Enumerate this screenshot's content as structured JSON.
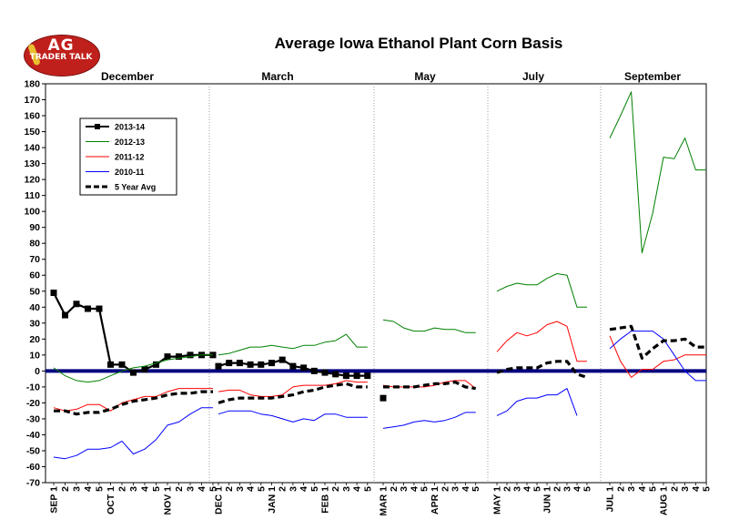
{
  "title": "Average Iowa Ethanol Plant Corn Basis",
  "logo": {
    "line1": "AG",
    "line2": "TRADER TALK"
  },
  "chart_data": {
    "type": "line",
    "title": "Average Iowa Ethanol Plant Corn Basis",
    "ylim": [
      -70,
      180
    ],
    "ytick_step": 10,
    "grid": false,
    "legend_position": "top-left",
    "zero_line_color": "#000080",
    "panels": [
      {
        "name": "December",
        "x_labels": [
          "SEP 1",
          "2",
          "3",
          "4",
          "5",
          "OCT 1",
          "2",
          "3",
          "4",
          "5",
          "NOV 1",
          "2",
          "3",
          "4",
          "5"
        ],
        "series": [
          {
            "name": "2013-14",
            "values": [
              49,
              35,
              42,
              39,
              39,
              4,
              4,
              -1,
              1,
              4,
              9,
              9,
              10,
              10,
              10
            ]
          },
          {
            "name": "2012-13",
            "values": [
              2,
              -3,
              -6,
              -7,
              -6,
              -3,
              0,
              2,
              3,
              5,
              7,
              8,
              9,
              10,
              10
            ]
          },
          {
            "name": "2011-12",
            "values": [
              -23,
              -25,
              -24,
              -21,
              -21,
              -25,
              -20,
              -18,
              -16,
              -16,
              -13,
              -11,
              -11,
              -11,
              -11
            ]
          },
          {
            "name": "2010-11",
            "values": [
              -54,
              -55,
              -53,
              -49,
              -49,
              -48,
              -44,
              -52,
              -49,
              -43,
              -34,
              -32,
              -27,
              -23,
              -23
            ]
          },
          {
            "name": "5 Year Avg",
            "values": [
              -25,
              -25,
              -27,
              -26,
              -26,
              -24,
              -21,
              -19,
              -18,
              -17,
              -15,
              -14,
              -14,
              -13,
              -13
            ]
          }
        ]
      },
      {
        "name": "March",
        "x_labels": [
          "DEC 1",
          "2",
          "3",
          "4",
          "5",
          "JAN 1",
          "2",
          "3",
          "4",
          "5",
          "FEB 1",
          "2",
          "3",
          "4",
          "5"
        ],
        "series": [
          {
            "name": "2013-14",
            "values": [
              3,
              5,
              5,
              4,
              4,
              5,
              7,
              3,
              2,
              0,
              -1,
              -2,
              -3,
              -3,
              -3
            ]
          },
          {
            "name": "2012-13",
            "values": [
              10,
              11,
              13,
              15,
              15,
              16,
              15,
              14,
              16,
              16,
              18,
              19,
              23,
              15,
              15
            ]
          },
          {
            "name": "2011-12",
            "values": [
              -13,
              -12,
              -12,
              -15,
              -16,
              -16,
              -15,
              -10,
              -9,
              -9,
              -9,
              -8,
              -6,
              -7,
              -7
            ]
          },
          {
            "name": "2010-11",
            "values": [
              -27,
              -25,
              -25,
              -25,
              -27,
              -28,
              -30,
              -32,
              -30,
              -31,
              -27,
              -27,
              -29,
              -29,
              -29
            ]
          },
          {
            "name": "5 Year Avg",
            "values": [
              -20,
              -18,
              -17,
              -17,
              -17,
              -17,
              -16,
              -15,
              -13,
              -12,
              -10,
              -9,
              -8,
              -10,
              -10
            ]
          }
        ]
      },
      {
        "name": "May",
        "x_labels": [
          "MAR 1",
          "2",
          "3",
          "4",
          "5",
          "APR 1",
          "2",
          "3",
          "4",
          "5"
        ],
        "series": [
          {
            "name": "2013-14",
            "values": [
              -17,
              null,
              null,
              null,
              null,
              null,
              null,
              null,
              null,
              null
            ]
          },
          {
            "name": "2012-13",
            "values": [
              32,
              31,
              27,
              25,
              25,
              27,
              26,
              26,
              24,
              24
            ]
          },
          {
            "name": "2011-12",
            "values": [
              -9,
              -10,
              -10,
              -10,
              -10,
              -9,
              -7,
              -6,
              -6,
              -11
            ]
          },
          {
            "name": "2010-11",
            "values": [
              -36,
              -35,
              -34,
              -32,
              -31,
              -32,
              -31,
              -29,
              -26,
              -26
            ]
          },
          {
            "name": "5 Year Avg",
            "values": [
              -10,
              -10,
              -10,
              -10,
              -9,
              -8,
              -8,
              -7,
              -10,
              -11
            ]
          }
        ]
      },
      {
        "name": "July",
        "x_labels": [
          "MAY 1",
          "2",
          "3",
          "4",
          "5",
          "JUN 1",
          "2",
          "3",
          "4",
          "5"
        ],
        "series": [
          {
            "name": "2012-13",
            "values": [
              50,
              53,
              55,
              54,
              54,
              58,
              61,
              60,
              40,
              40
            ]
          },
          {
            "name": "2011-12",
            "values": [
              12,
              19,
              24,
              22,
              24,
              29,
              31,
              28,
              6,
              6
            ]
          },
          {
            "name": "2010-11",
            "values": [
              -28,
              -25,
              -19,
              -17,
              -17,
              -15,
              -15,
              -11,
              -28,
              null
            ]
          },
          {
            "name": "5 Year Avg",
            "values": [
              -1,
              1,
              2,
              2,
              2,
              5,
              6,
              6,
              -2,
              -4
            ]
          }
        ]
      },
      {
        "name": "September",
        "x_labels": [
          "JUL 1",
          "2",
          "3",
          "4",
          "5",
          "AUG 1",
          "2",
          "3",
          "4",
          "5"
        ],
        "series": [
          {
            "name": "2012-13",
            "values": [
              146,
              160,
              175,
              74,
              99,
              134,
              133,
              146,
              126,
              126
            ]
          },
          {
            "name": "2011-12",
            "values": [
              22,
              6,
              -4,
              1,
              1,
              6,
              7,
              10,
              10,
              10
            ]
          },
          {
            "name": "2010-11",
            "values": [
              14,
              20,
              25,
              25,
              25,
              20,
              10,
              0,
              -6,
              -6
            ]
          },
          {
            "name": "5 Year Avg",
            "values": [
              26,
              27,
              28,
              8,
              14,
              19,
              19,
              20,
              15,
              15
            ]
          }
        ]
      }
    ],
    "legend": [
      {
        "name": "2013-14",
        "color": "#000000",
        "style": "solid-markers"
      },
      {
        "name": "2012-13",
        "color": "#008000",
        "style": "solid"
      },
      {
        "name": "2011-12",
        "color": "#ff0000",
        "style": "solid"
      },
      {
        "name": "2010-11",
        "color": "#0000ff",
        "style": "solid"
      },
      {
        "name": "5 Year Avg",
        "color": "#000000",
        "style": "dashed"
      }
    ],
    "colors": {
      "2013-14": "#000000",
      "2012-13": "#008000",
      "2011-12": "#ff0000",
      "2010-11": "#0000ff",
      "5 Year Avg": "#000000"
    }
  }
}
